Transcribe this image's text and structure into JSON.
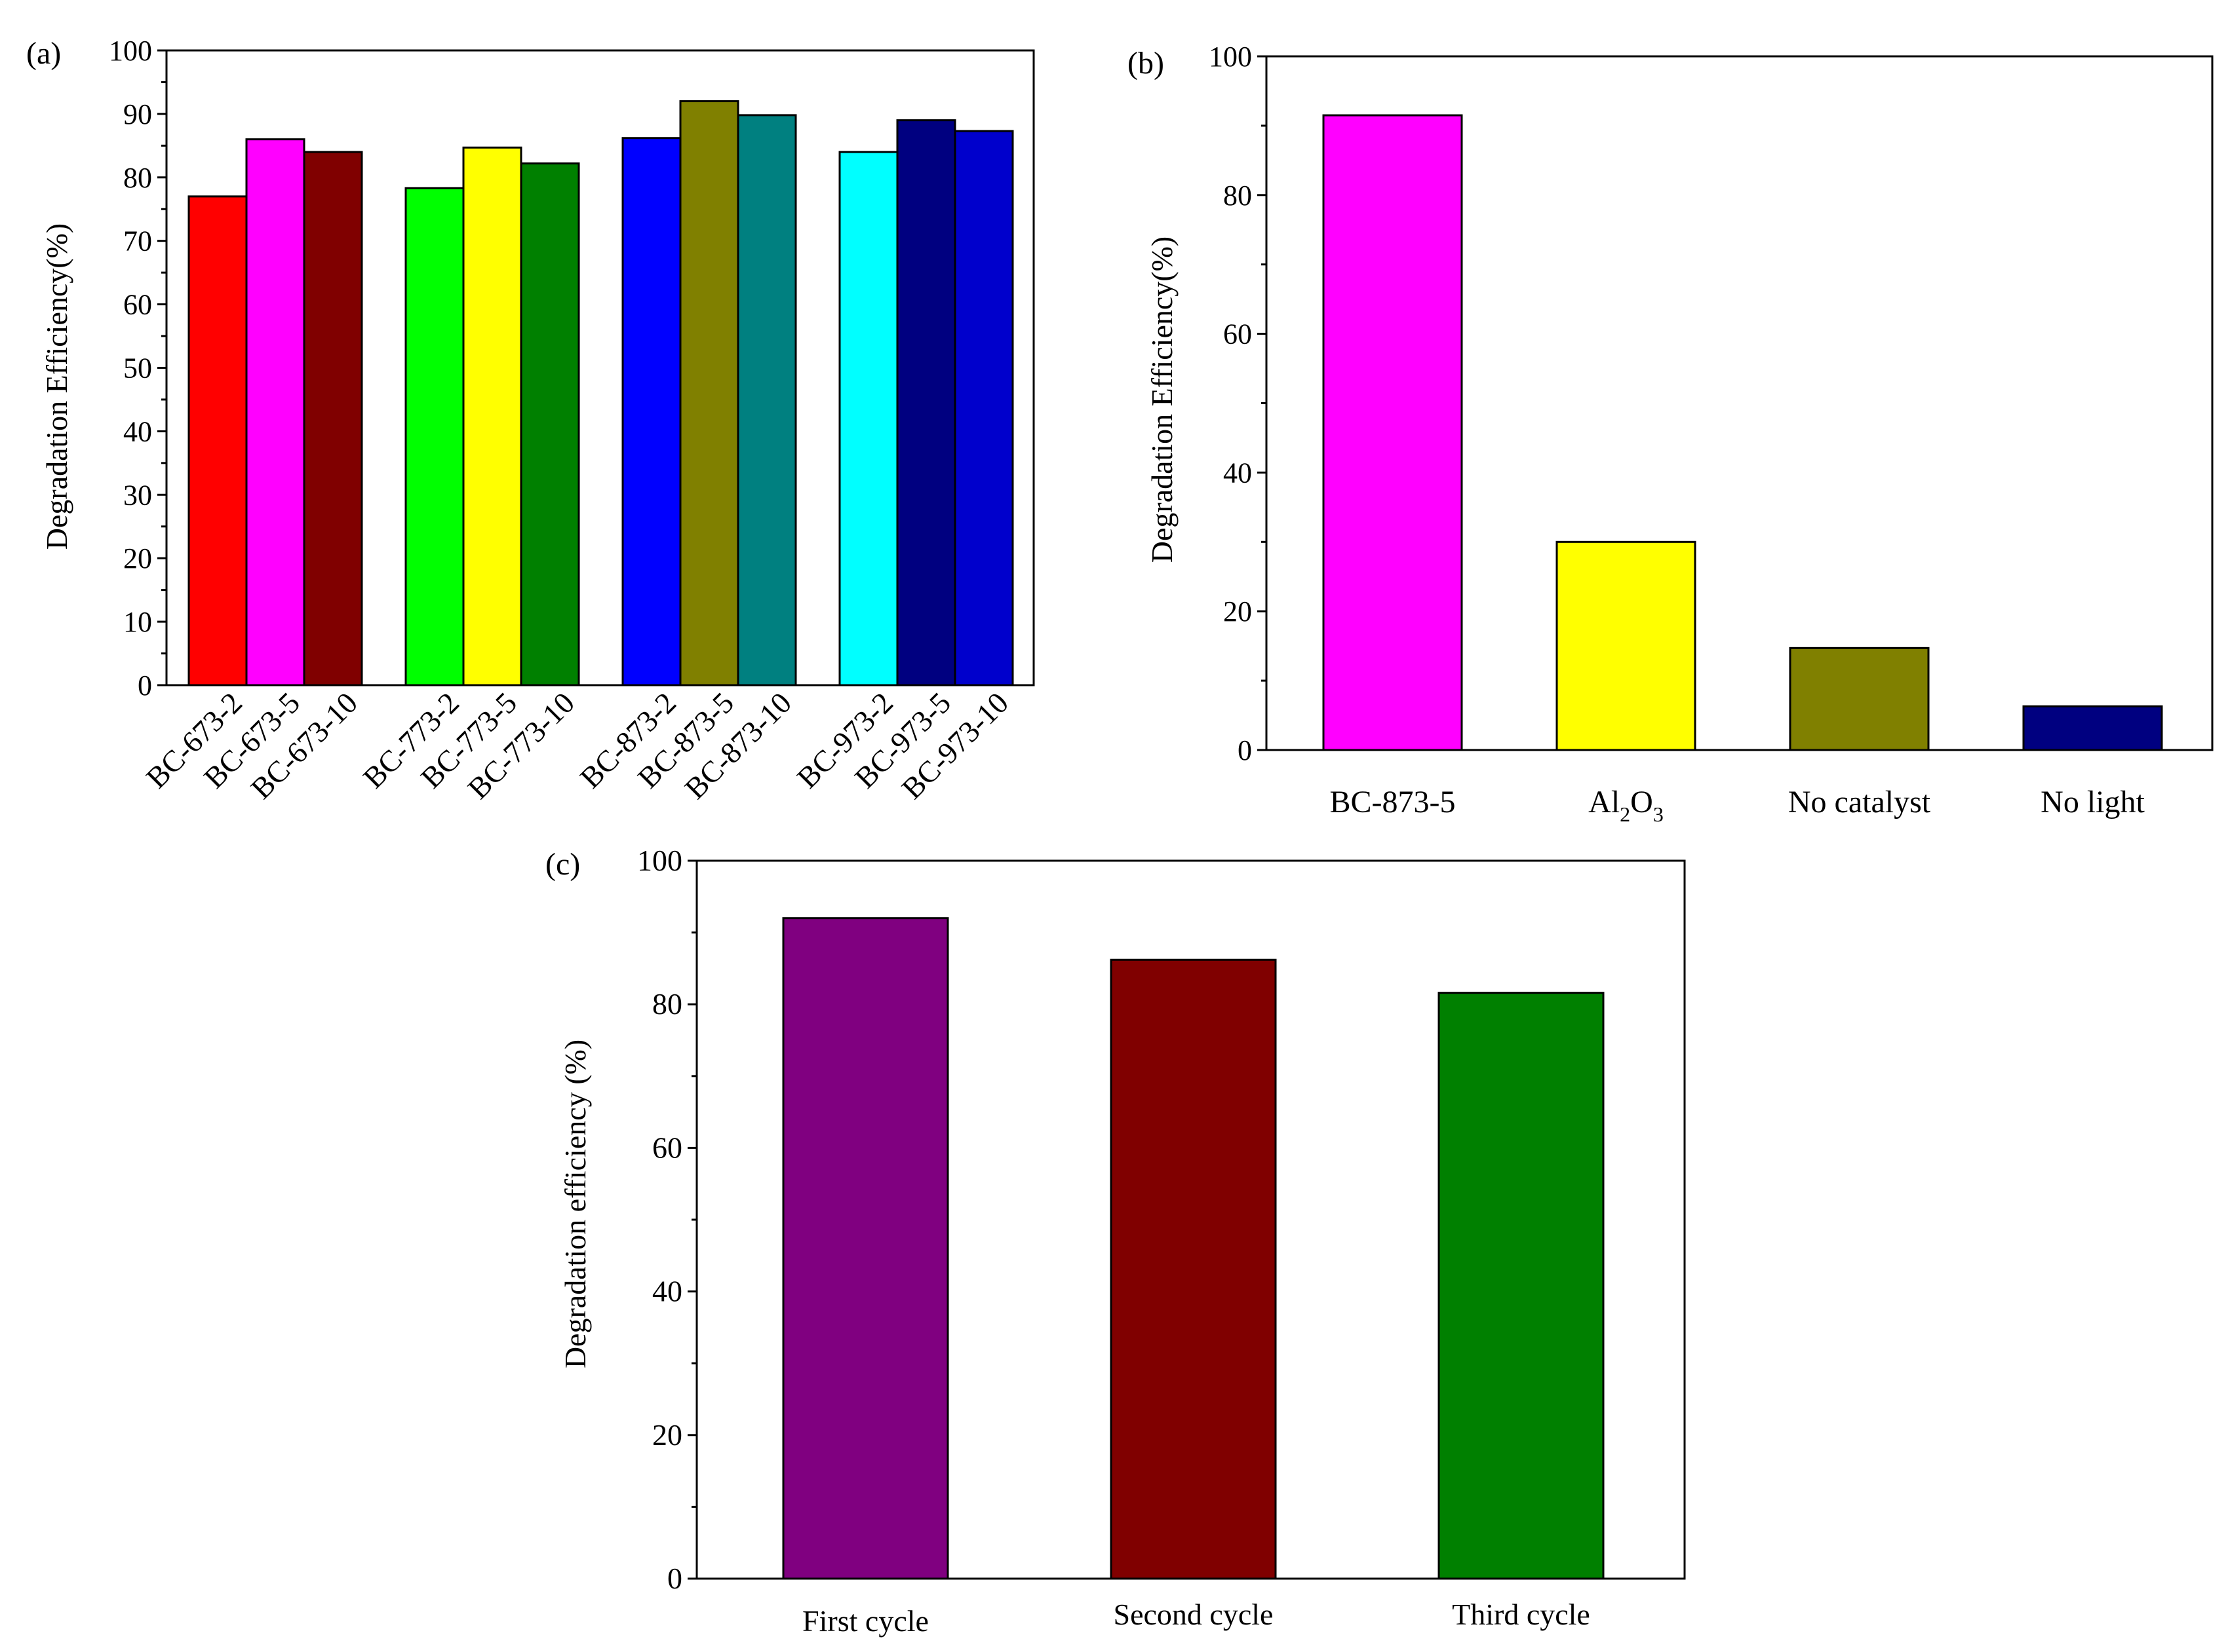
{
  "chart_data": [
    {
      "panel": "(a)",
      "type": "bar",
      "ylabel": "Degradation Efficiency(%)",
      "ylim": [
        0,
        100
      ],
      "yticks": [
        0,
        10,
        20,
        30,
        40,
        50,
        60,
        70,
        80,
        90,
        100
      ],
      "categories": [
        "BC-673-2",
        "BC-673-5",
        "BC-673-10",
        "BC-773-2",
        "BC-773-5",
        "BC-773-10",
        "BC-873-2",
        "BC-873-5",
        "BC-873-10",
        "BC-973-2",
        "BC-973-5",
        "BC-973-10"
      ],
      "values": [
        77,
        86,
        84,
        78.3,
        84.7,
        82.2,
        86.2,
        92,
        89.8,
        84,
        89,
        87.3
      ],
      "colors": [
        "#ff0000",
        "#ff00ff",
        "#800000",
        "#00ff00",
        "#ffff00",
        "#008000",
        "#0000ff",
        "#808000",
        "#008080",
        "#00ffff",
        "#000080",
        "#0000cc"
      ]
    },
    {
      "panel": "(b)",
      "type": "bar",
      "ylabel": "Degradation Efficiency(%)",
      "ylim": [
        0,
        100
      ],
      "yticks": [
        0,
        20,
        40,
        60,
        80,
        100
      ],
      "categories": [
        {
          "text": "BC-873-5"
        },
        {
          "text": "Al2O3",
          "parts": [
            "Al",
            "2",
            "O",
            "3"
          ]
        },
        {
          "text": "No catalyst"
        },
        {
          "text": "No light"
        }
      ],
      "values": [
        91.5,
        30,
        14.7,
        6.3
      ],
      "colors": [
        "#ff00ff",
        "#ffff00",
        "#808000",
        "#000080"
      ]
    },
    {
      "panel": "(c)",
      "type": "bar",
      "ylabel": "Degradation efficiency (%)",
      "ylim": [
        0,
        100
      ],
      "yticks": [
        0,
        20,
        40,
        60,
        80,
        100
      ],
      "categories": [
        "First cycle",
        "Second cycle",
        "Third cycle"
      ],
      "values": [
        92,
        86.2,
        81.6
      ],
      "colors": [
        "#800080",
        "#800000",
        "#008000"
      ]
    }
  ]
}
